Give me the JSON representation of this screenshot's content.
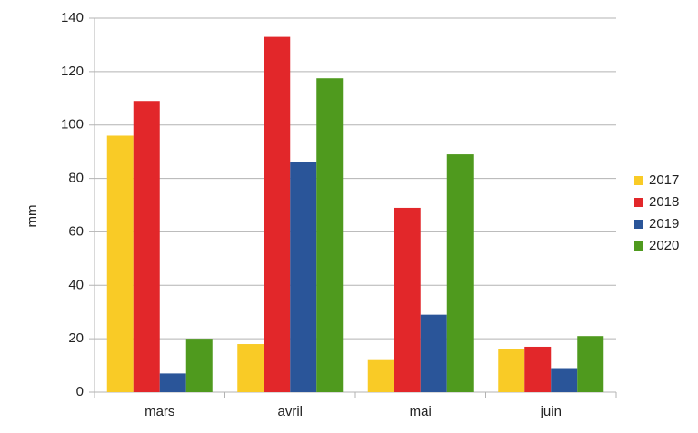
{
  "chart_data": {
    "type": "bar",
    "y_label": "mm",
    "categories": [
      "mars",
      "avril",
      "mai",
      "juin"
    ],
    "series": [
      {
        "name": "2017",
        "color": "#f9cb26",
        "values": [
          96,
          18,
          12,
          16
        ]
      },
      {
        "name": "2018",
        "color": "#e2272a",
        "values": [
          109,
          133,
          69,
          17
        ]
      },
      {
        "name": "2019",
        "color": "#2a5599",
        "values": [
          7,
          86,
          29,
          9
        ]
      },
      {
        "name": "2020",
        "color": "#4f9a1e",
        "values": [
          20,
          117.5,
          89,
          21
        ]
      }
    ],
    "ylim": [
      0,
      140
    ],
    "yticks": [
      0,
      20,
      40,
      60,
      80,
      100,
      120,
      140
    ],
    "grid": true,
    "legend": "right"
  }
}
